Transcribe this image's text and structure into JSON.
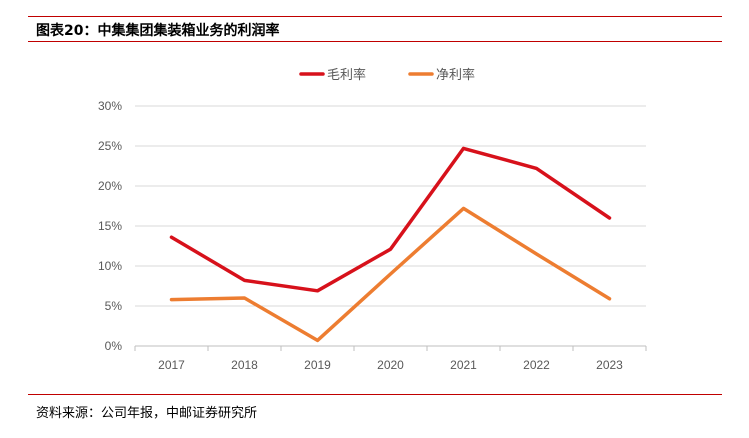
{
  "header": {
    "title": "图表20：中集集团集装箱业务的利润率"
  },
  "footer": {
    "source": "资料来源：公司年报，中邮证券研究所"
  },
  "chart_data": {
    "type": "line",
    "x": [
      "2017",
      "2018",
      "2019",
      "2020",
      "2021",
      "2022",
      "2023"
    ],
    "series": [
      {
        "name": "毛利率",
        "color": "#d7111b",
        "values": [
          13.6,
          8.2,
          6.9,
          12.1,
          24.7,
          22.2,
          16.0
        ]
      },
      {
        "name": "净利率",
        "color": "#ed7d31",
        "values": [
          5.8,
          6.0,
          0.7,
          9.0,
          17.2,
          11.5,
          5.9
        ]
      }
    ],
    "ylim": [
      0,
      30
    ],
    "yticks": [
      "0%",
      "5%",
      "10%",
      "15%",
      "20%",
      "25%",
      "30%"
    ],
    "legend_position": "top-center",
    "grid": true
  }
}
